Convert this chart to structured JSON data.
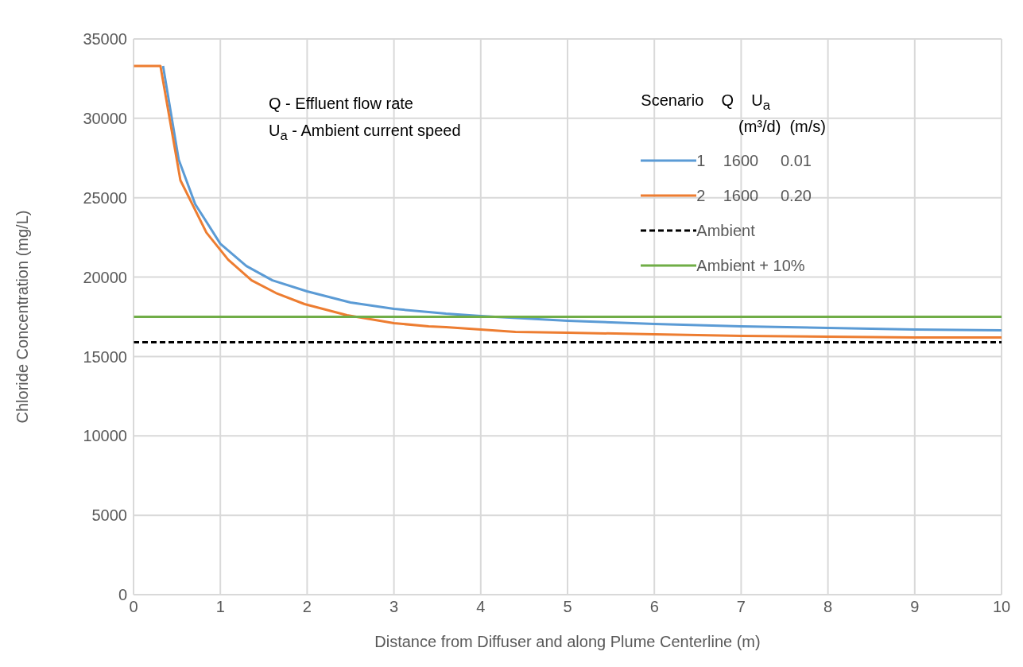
{
  "chart_data": {
    "type": "line",
    "xlabel": "Distance from Diffuser and along Plume Centerline (m)",
    "ylabel": "Chloride Concentration (mg/L)",
    "legend_title": "Scenario    Q    U$_{a}$\n(m³/d)  (m/s)",
    "annotations": [
      "Q - Effluent flow rate",
      "U$_{a}$ - Ambient current speed"
    ],
    "xlim": [
      0,
      10
    ],
    "xticks": [
      0,
      1,
      2,
      3,
      4,
      5,
      6,
      7,
      8,
      9,
      10
    ],
    "ylim": [
      0,
      35000
    ],
    "yticks": [
      0,
      5000,
      10000,
      15000,
      20000,
      25000,
      30000,
      35000
    ],
    "grid": true,
    "legend": "top right",
    "marker": "none",
    "series": [
      {
        "name": "1    1600     0.01",
        "color": "#5b9bd5",
        "line_style": "solid",
        "x": [
          0.34,
          0.52,
          0.71,
          1.0,
          1.3,
          1.6,
          2.0,
          2.5,
          3.0,
          3.4,
          3.6,
          4.0,
          5.0,
          6.0,
          7.0,
          8.0,
          9.0,
          10.0
        ],
        "values": [
          33300,
          27400,
          24600,
          22100,
          20700,
          19800,
          19100,
          18400,
          18000,
          17800,
          17700,
          17550,
          17250,
          17050,
          16900,
          16800,
          16700,
          16650
        ]
      },
      {
        "name": "2    1600     0.20",
        "color": "#ed7d31",
        "line_style": "solid",
        "x": [
          0,
          0.31,
          0.54,
          0.84,
          1.09,
          1.36,
          1.64,
          1.97,
          2.46,
          3.0,
          3.4,
          3.6,
          4.0,
          4.4,
          5.0,
          6.0,
          7.0,
          8.0,
          9.0,
          10.0
        ],
        "values": [
          33300,
          33300,
          26100,
          22800,
          21100,
          19800,
          19000,
          18300,
          17600,
          17100,
          16900,
          16850,
          16700,
          16550,
          16500,
          16400,
          16300,
          16250,
          16200,
          16200
        ]
      },
      {
        "name": "Ambient",
        "color": "#000000",
        "line_style": "dashed",
        "x": [
          0,
          10
        ],
        "values": [
          15900,
          15900
        ]
      },
      {
        "name": "Ambient + 10%",
        "color": "#70ad47",
        "line_style": "solid",
        "x": [
          0,
          10
        ],
        "values": [
          17500,
          17500
        ]
      }
    ]
  }
}
